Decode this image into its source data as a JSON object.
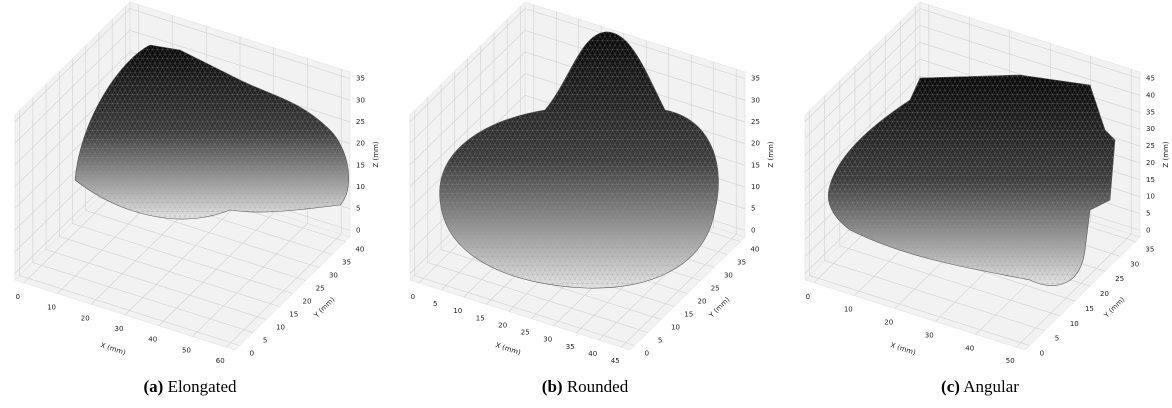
{
  "panels": [
    {
      "tag": "(a)",
      "caption": "Elongated",
      "x_label": "X (mm)",
      "y_label": "Y (mm)",
      "z_label": "Z (mm)",
      "x_ticks": [
        0,
        10,
        20,
        30,
        40,
        50,
        60
      ],
      "y_ticks": [
        0,
        5,
        10,
        15,
        20,
        25,
        30,
        35,
        40
      ],
      "z_ticks": [
        0,
        5,
        10,
        15,
        20,
        25,
        30,
        35
      ]
    },
    {
      "tag": "(b)",
      "caption": "Rounded",
      "x_label": "X (mm)",
      "y_label": "Y (mm)",
      "z_label": "Z (mm)",
      "x_ticks": [
        0,
        5,
        10,
        15,
        20,
        25,
        30,
        35,
        40,
        45
      ],
      "y_ticks": [
        0,
        5,
        10,
        15,
        20,
        25,
        30,
        35,
        40
      ],
      "z_ticks": [
        0,
        5,
        10,
        15,
        20,
        25,
        30,
        35
      ]
    },
    {
      "tag": "(c)",
      "caption": "Angular",
      "x_label": "X (mm)",
      "y_label": "Y (mm)",
      "z_label": "Z (mm)",
      "x_ticks": [
        0,
        10,
        20,
        30,
        40,
        50
      ],
      "y_ticks": [
        0,
        5,
        10,
        15,
        20,
        25,
        30,
        35
      ],
      "z_ticks": [
        0,
        5,
        10,
        15,
        20,
        25,
        30,
        35,
        40,
        45
      ]
    }
  ]
}
